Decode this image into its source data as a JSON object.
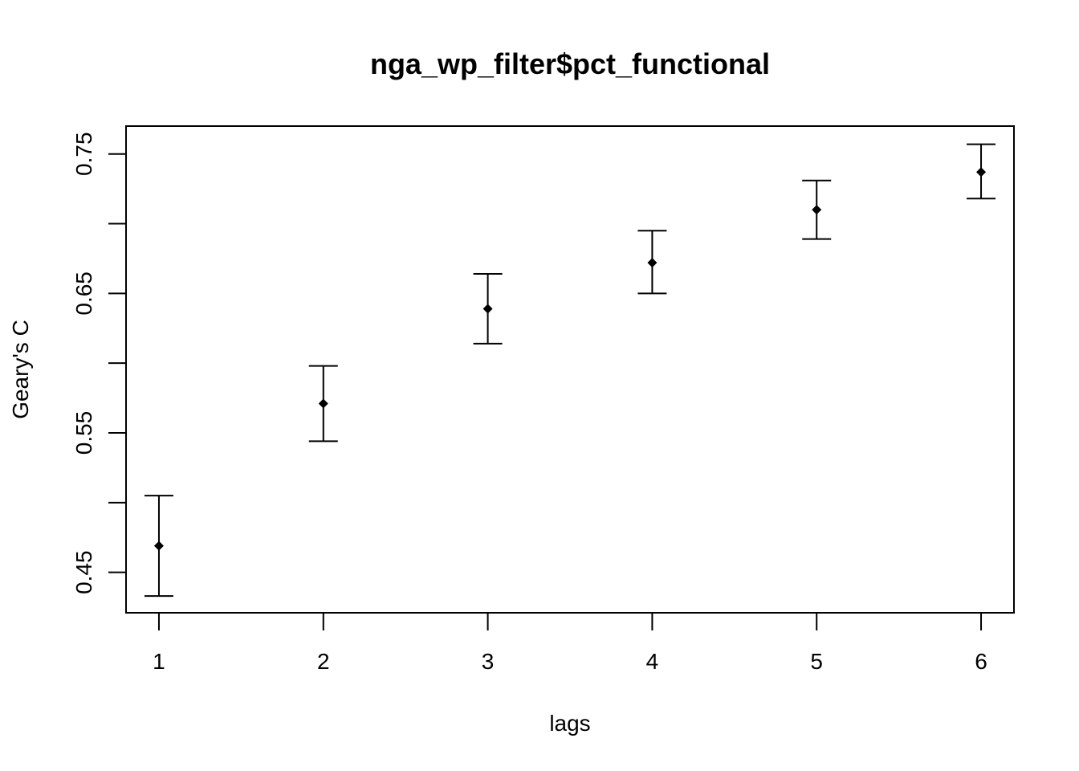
{
  "chart_data": {
    "type": "scatter",
    "title": "nga_wp_filter$pct_functional",
    "xlabel": "lags",
    "ylabel": "Geary's C",
    "x": [
      1,
      2,
      3,
      4,
      5,
      6
    ],
    "x_ticks": [
      "1",
      "2",
      "3",
      "4",
      "5",
      "6"
    ],
    "y_ticks": [
      "0.45",
      "0.55",
      "0.65",
      "0.75"
    ],
    "y_tick_values": [
      0.45,
      0.55,
      0.65,
      0.75
    ],
    "y_minor_ticks": [
      0.5,
      0.6,
      0.7
    ],
    "series": [
      {
        "values": [
          0.469,
          0.571,
          0.639,
          0.672,
          0.71,
          0.737
        ],
        "lower": [
          0.433,
          0.544,
          0.614,
          0.65,
          0.689,
          0.718
        ],
        "upper": [
          0.505,
          0.598,
          0.664,
          0.695,
          0.731,
          0.757
        ]
      }
    ],
    "xlim": [
      0.8,
      6.2
    ],
    "ylim": [
      0.421,
      0.77
    ],
    "grid": false,
    "marker": "diamond",
    "error_bars": true
  }
}
